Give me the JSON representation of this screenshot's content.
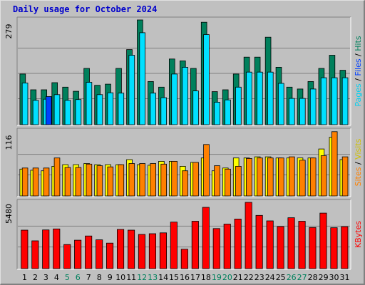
{
  "title": "Daily usage for October 2024",
  "chart_data": [
    {
      "type": "bar",
      "name_labels": [
        "Pages",
        "Files",
        "Hits"
      ],
      "separator": " / ",
      "ymax_label": "279",
      "ylim": [
        0,
        279
      ],
      "categories": [
        "1",
        "2",
        "3",
        "4",
        "5",
        "6",
        "7",
        "8",
        "9",
        "10",
        "11",
        "12",
        "13",
        "14",
        "15",
        "16",
        "17",
        "18",
        "19",
        "20",
        "21",
        "22",
        "23",
        "24",
        "25",
        "26",
        "27",
        "28",
        "29",
        "30",
        "31"
      ],
      "series": [
        {
          "name": "Hits",
          "color": "#00805c",
          "values": [
            135,
            93,
            93,
            112,
            100,
            89,
            150,
            105,
            108,
            150,
            200,
            279,
            115,
            100,
            175,
            170,
            150,
            273,
            88,
            93,
            135,
            180,
            180,
            233,
            153,
            100,
            95,
            115,
            150,
            185,
            145
          ]
        },
        {
          "name": "Files",
          "color": "#00e0ff",
          "values": [
            111,
            65,
            68,
            80,
            65,
            67,
            113,
            80,
            85,
            84,
            185,
            245,
            84,
            72,
            135,
            153,
            90,
            240,
            60,
            66,
            100,
            140,
            140,
            140,
            110,
            70,
            70,
            95,
            125,
            125,
            125
          ]
        },
        {
          "name": "Pages",
          "color": "#0040ff",
          "values": [
            0,
            0,
            75,
            0,
            0,
            0,
            0,
            0,
            0,
            0,
            0,
            0,
            0,
            0,
            0,
            0,
            0,
            0,
            0,
            0,
            0,
            0,
            0,
            0,
            0,
            0,
            0,
            0,
            0,
            0,
            0
          ]
        }
      ],
      "day_label_colors": {
        "weekend": "#00805c",
        "weekday": "#000000"
      },
      "weekend_days": [
        "5",
        "6",
        "12",
        "13",
        "19",
        "20",
        "26",
        "27"
      ]
    },
    {
      "type": "bar",
      "name_labels": [
        "Sites",
        "Visits"
      ],
      "separator": " / ",
      "ymax_label": "116",
      "ylim": [
        0,
        116
      ],
      "series": [
        {
          "name": "Visits",
          "color": "#ffff00",
          "values": [
            48,
            46,
            45,
            53,
            56,
            56,
            58,
            56,
            56,
            56,
            65,
            56,
            55,
            62,
            62,
            53,
            60,
            68,
            45,
            50,
            68,
            68,
            70,
            70,
            68,
            68,
            68,
            68,
            84,
            105,
            65
          ]
        },
        {
          "name": "Sites",
          "color": "#ff8000",
          "values": [
            50,
            50,
            50,
            68,
            51,
            51,
            57,
            54,
            52,
            56,
            58,
            58,
            58,
            57,
            62,
            45,
            60,
            92,
            54,
            48,
            53,
            67,
            68,
            68,
            68,
            70,
            64,
            68,
            72,
            115,
            70
          ]
        }
      ]
    },
    {
      "type": "bar",
      "name_labels": [
        "KBytes"
      ],
      "ymax_label": "5480",
      "ylim": [
        0,
        5480
      ],
      "series": [
        {
          "name": "KBytes",
          "color": "#ff0000",
          "values": [
            3180,
            2300,
            3200,
            3280,
            1990,
            2350,
            2700,
            2380,
            2110,
            3240,
            3180,
            2830,
            2890,
            2960,
            3850,
            1600,
            3920,
            5070,
            3310,
            3680,
            4100,
            5480,
            4400,
            3950,
            3480,
            4210,
            3920,
            3400,
            4590,
            3380,
            3470
          ]
        }
      ]
    }
  ],
  "colors": {
    "pages": "#00d0f0",
    "files": "#0040ff",
    "hits": "#00805c",
    "sites": "#ff8000",
    "visits": "#d0c000",
    "kbytes": "#ff0000",
    "separator": "#000000"
  }
}
